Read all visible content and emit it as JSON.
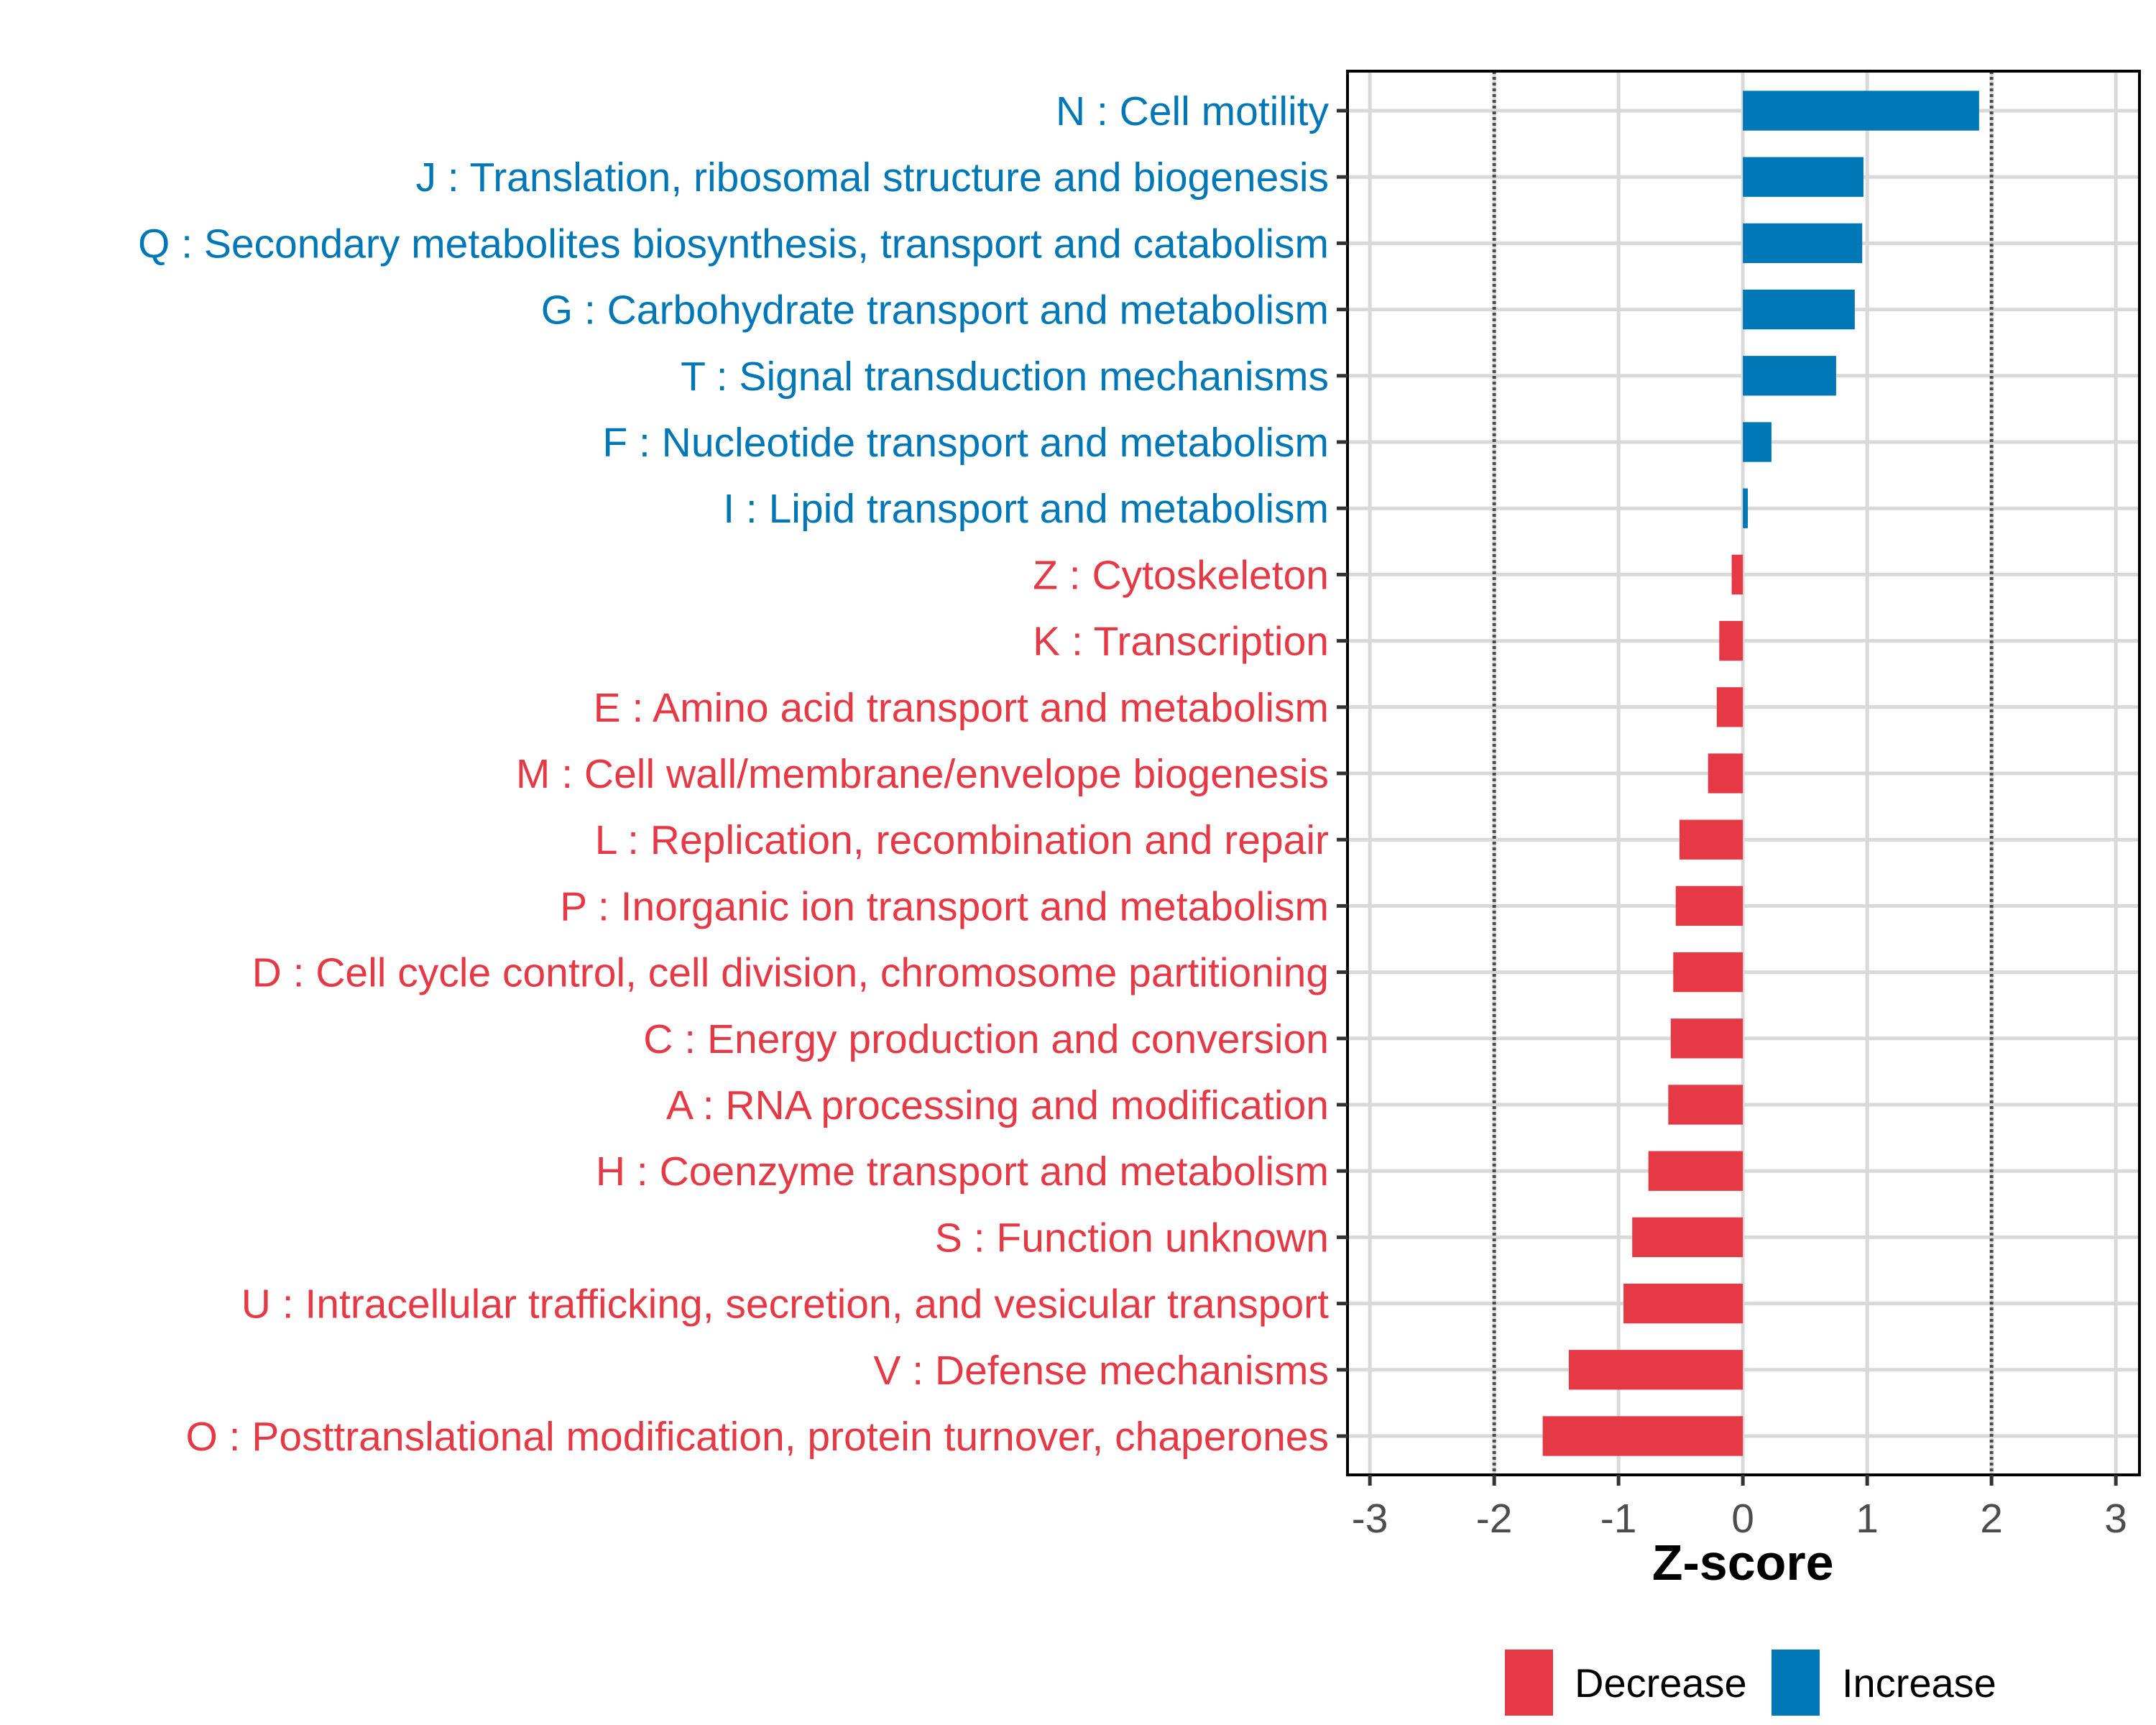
{
  "chart_data": {
    "type": "bar",
    "orientation": "horizontal",
    "title": "",
    "xlabel": "Z-score",
    "ylabel": "",
    "xlim": [
      -3.18,
      3.19
    ],
    "xticks": [
      -3,
      -2,
      -1,
      0,
      1,
      2,
      3
    ],
    "xtick_labels": [
      "-3",
      "-2",
      "-1",
      "0",
      "1",
      "2",
      "3"
    ],
    "reference_lines": [
      -2,
      2
    ],
    "grid": true,
    "legend": {
      "placement": "bottom",
      "entries": [
        {
          "label": "Decrease",
          "color": "#E63946"
        },
        {
          "label": "Increase",
          "color": "#0077B6"
        }
      ]
    },
    "colors": {
      "Increase": "#0077B6",
      "Decrease": "#E63946"
    },
    "categories": [
      "N : Cell motility",
      "J : Translation, ribosomal structure and biogenesis",
      "Q : Secondary metabolites biosynthesis, transport and catabolism",
      "G : Carbohydrate transport and metabolism",
      "T : Signal transduction mechanisms",
      "F : Nucleotide transport and metabolism",
      "I : Lipid transport and metabolism",
      "Z : Cytoskeleton",
      "K : Transcription",
      "E : Amino acid transport and metabolism",
      "M : Cell wall/membrane/envelope biogenesis",
      "L : Replication, recombination and repair",
      "P : Inorganic ion transport and metabolism",
      "D : Cell cycle control, cell division, chromosome partitioning",
      "C : Energy production and conversion",
      "A : RNA processing and modification",
      "H : Coenzyme transport and metabolism",
      "S : Function unknown",
      "U : Intracellular trafficking, secretion, and vesicular transport",
      "V : Defense mechanisms",
      "O : Posttranslational modification, protein turnover, chaperones"
    ],
    "values": [
      1.9,
      0.97,
      0.96,
      0.9,
      0.75,
      0.23,
      0.04,
      -0.09,
      -0.19,
      -0.21,
      -0.28,
      -0.51,
      -0.54,
      -0.56,
      -0.58,
      -0.6,
      -0.76,
      -0.89,
      -0.96,
      -1.4,
      -1.61
    ],
    "groups": [
      "Increase",
      "Increase",
      "Increase",
      "Increase",
      "Increase",
      "Increase",
      "Increase",
      "Decrease",
      "Decrease",
      "Decrease",
      "Decrease",
      "Decrease",
      "Decrease",
      "Decrease",
      "Decrease",
      "Decrease",
      "Decrease",
      "Decrease",
      "Decrease",
      "Decrease",
      "Decrease"
    ]
  }
}
